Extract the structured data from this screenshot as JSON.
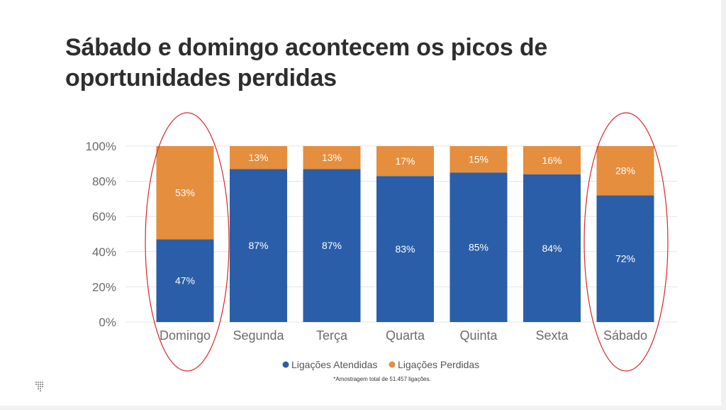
{
  "title": "Sábado e domingo acontecem os picos de oportunidades perdidas",
  "footnote": "*Amostragem total de 51.457 ligações.",
  "colors": {
    "atendidas": "#2a5ea8",
    "perdidas": "#e58e3e",
    "highlight": "#d42a2a",
    "title": "#2e2e2e",
    "axis_text": "#6b6b6b"
  },
  "chart_data": {
    "type": "bar",
    "stacked": true,
    "categories": [
      "Domingo",
      "Segunda",
      "Terça",
      "Quarta",
      "Quinta",
      "Sexta",
      "Sábado"
    ],
    "series": [
      {
        "name": "Ligações Atendidas",
        "color": "#2a5ea8",
        "values": [
          47,
          87,
          87,
          83,
          85,
          84,
          72
        ],
        "labels": [
          "47%",
          "87%",
          "87%",
          "83%",
          "85%",
          "84%",
          "72%"
        ]
      },
      {
        "name": "Ligações Perdidas",
        "color": "#e58e3e",
        "values": [
          53,
          13,
          13,
          17,
          15,
          16,
          28
        ],
        "labels": [
          "53%",
          "13%",
          "13%",
          "17%",
          "15%",
          "16%",
          "28%"
        ]
      }
    ],
    "yticks": [
      "0%",
      "20%",
      "40%",
      "60%",
      "80%",
      "100%"
    ],
    "ylim": [
      0,
      100
    ],
    "highlighted": [
      "Domingo",
      "Sábado"
    ],
    "legend_position": "bottom",
    "grid": true
  }
}
